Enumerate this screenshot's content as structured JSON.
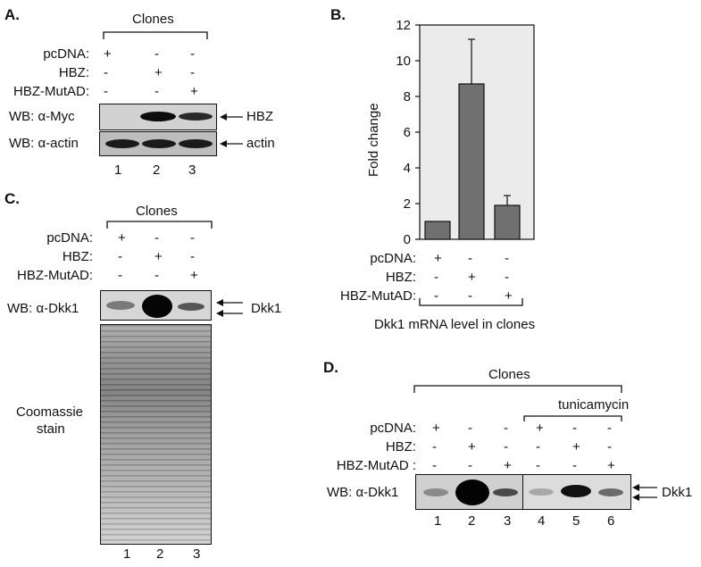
{
  "panels": {
    "a": "A.",
    "b": "B.",
    "c": "C.",
    "d": "D."
  },
  "a": {
    "clones": "Clones",
    "row_labels": [
      "pcDNA:",
      "HBZ:",
      "HBZ-MutAD:"
    ],
    "signs": [
      [
        "+",
        "-",
        "-"
      ],
      [
        "-",
        "+",
        "-"
      ],
      [
        "-",
        "-",
        "+"
      ]
    ],
    "wb1": "WB: α-Myc",
    "wb2": "WB: α-actin",
    "arrow1": "HBZ",
    "arrow2": "actin",
    "lanes": [
      "1",
      "2",
      "3"
    ]
  },
  "b": {
    "row_labels": [
      "pcDNA:",
      "HBZ:",
      "HBZ-MutAD:"
    ],
    "signs": [
      [
        "+",
        "-",
        "-"
      ],
      [
        "-",
        "+",
        "-"
      ],
      [
        "-",
        "-",
        "+"
      ]
    ],
    "caption": "Dkk1 mRNA level in clones"
  },
  "c": {
    "clones": "Clones",
    "row_labels": [
      "pcDNA:",
      "HBZ:",
      "HBZ-MutAD:"
    ],
    "signs": [
      [
        "+",
        "-",
        "-"
      ],
      [
        "-",
        "+",
        "-"
      ],
      [
        "-",
        "-",
        "+"
      ]
    ],
    "wb": "WB: α-Dkk1",
    "arrow": "Dkk1",
    "stain1": "Coomassie",
    "stain2": "stain",
    "lanes": [
      "1",
      "2",
      "3"
    ]
  },
  "d": {
    "clones": "Clones",
    "tunicamycin": "tunicamycin",
    "row_labels": [
      "pcDNA:",
      "HBZ:",
      "HBZ-MutAD :"
    ],
    "signs": [
      [
        "+",
        "-",
        "-",
        "+",
        "-",
        "-"
      ],
      [
        "-",
        "+",
        "-",
        "-",
        "+",
        "-"
      ],
      [
        "-",
        "-",
        "+",
        "-",
        "-",
        "+"
      ]
    ],
    "wb": "WB: α-Dkk1",
    "arrow": "Dkk1",
    "lanes": [
      "1",
      "2",
      "3",
      "4",
      "5",
      "6"
    ]
  },
  "chart_data": {
    "type": "bar",
    "categories": [
      "pcDNA",
      "HBZ",
      "HBZ-MutAD"
    ],
    "values": [
      1.0,
      8.7,
      1.9
    ],
    "errors": [
      0,
      2.5,
      0.55
    ],
    "ylabel": "Fold change",
    "xlabel": "Dkk1 mRNA level in clones",
    "ylim": [
      0,
      12
    ],
    "yticks": [
      "0",
      "2",
      "4",
      "6",
      "8",
      "10",
      "12"
    ],
    "colors": {
      "bar": "#707070",
      "plot_bg": "#ebebeb"
    }
  }
}
